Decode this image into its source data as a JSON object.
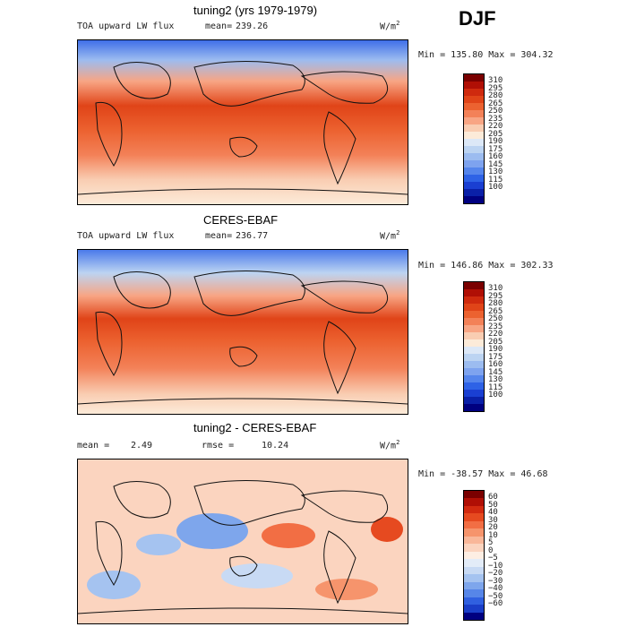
{
  "season": "DJF",
  "units_main": "W/m",
  "units_exp": "2",
  "panels": [
    {
      "title": "tuning2 (yrs 1979-1979)",
      "variable": "TOA upward LW flux",
      "mean_label": "mean=",
      "mean_value": "239.26",
      "stats": "Min = 135.80 Max = 304.32"
    },
    {
      "title": "CERES-EBAF",
      "variable": "TOA upward LW flux",
      "mean_label": "mean=",
      "mean_value": "236.77",
      "stats": "Min = 146.86 Max = 302.33"
    },
    {
      "title": "tuning2 - CERES-EBAF",
      "mean_label": "mean =",
      "mean_value": "2.49",
      "rmse_label": "rmse =",
      "rmse_value": "10.24",
      "stats": "Min = -38.57 Max =  46.68"
    }
  ],
  "colorbar_abs": [
    "310",
    "295",
    "280",
    "265",
    "250",
    "235",
    "220",
    "205",
    "190",
    "175",
    "160",
    "145",
    "130",
    "115",
    "100"
  ],
  "colorbar_diff": [
    "60",
    "50",
    "40",
    "30",
    "20",
    "10",
    "5",
    "0",
    "−5",
    "−10",
    "−20",
    "−30",
    "−40",
    "−50",
    "−60"
  ],
  "colors_abs": [
    "#7a0000",
    "#b00f05",
    "#cf2a0e",
    "#e04418",
    "#ec6230",
    "#f38158",
    "#f8a584",
    "#f9cdb2",
    "#fcebd9",
    "#dce8f7",
    "#bcd4f2",
    "#9cbcf0",
    "#7ea3ef",
    "#5585ec",
    "#2e62e6",
    "#1a3fd2",
    "#0a20a8",
    "#000080"
  ],
  "colors_diff": [
    "#7a0000",
    "#b00f05",
    "#d22a10",
    "#e64a20",
    "#f26e44",
    "#f6946c",
    "#f9b799",
    "#fbd4bf",
    "#fdeee3",
    "#e3ecf8",
    "#c8daf4",
    "#a5c3f0",
    "#7ea6ec",
    "#5786e8",
    "#3060e0",
    "#1a3ec8",
    "#000080"
  ]
}
